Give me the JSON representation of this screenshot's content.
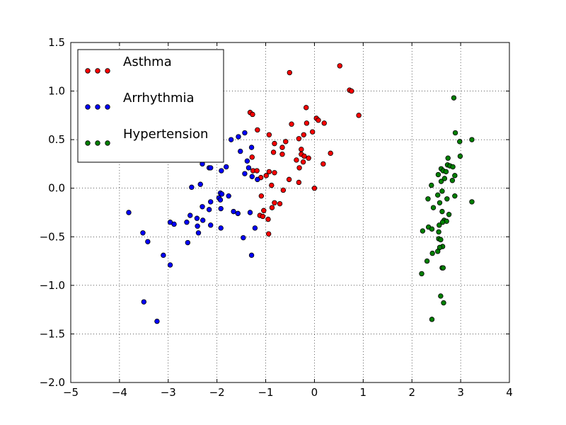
{
  "chart_data": {
    "type": "scatter",
    "title": "",
    "xlabel": "",
    "ylabel": "",
    "xlim": [
      -5,
      4
    ],
    "ylim": [
      -2.0,
      1.5
    ],
    "xticks": [
      -5,
      -4,
      -3,
      -2,
      -1,
      0,
      1,
      2,
      3,
      4
    ],
    "xtick_labels": [
      "−5",
      "−4",
      "−3",
      "−2",
      "−1",
      "0",
      "1",
      "2",
      "3",
      "4"
    ],
    "yticks": [
      -2.0,
      -1.5,
      -1.0,
      -0.5,
      0.0,
      0.5,
      1.0,
      1.5
    ],
    "ytick_labels": [
      "−2.0",
      "−1.5",
      "−1.0",
      "−0.5",
      "0.0",
      "0.5",
      "1.0",
      "1.5"
    ],
    "grid": true,
    "legend_position": "top-left",
    "series": [
      {
        "name": "Asthma",
        "color": "#ff0000",
        "points": [
          [
            0.52,
            1.26
          ],
          [
            -0.51,
            1.19
          ],
          [
            0.72,
            1.01
          ],
          [
            0.76,
            1.0
          ],
          [
            -1.32,
            0.78
          ],
          [
            -1.27,
            0.76
          ],
          [
            0.91,
            0.75
          ],
          [
            -0.17,
            0.83
          ],
          [
            0.04,
            0.72
          ],
          [
            0.08,
            0.7
          ],
          [
            0.2,
            0.67
          ],
          [
            -0.47,
            0.66
          ],
          [
            -0.16,
            0.67
          ],
          [
            -1.17,
            0.6
          ],
          [
            -0.04,
            0.58
          ],
          [
            -0.93,
            0.55
          ],
          [
            -0.22,
            0.55
          ],
          [
            -0.32,
            0.51
          ],
          [
            -0.59,
            0.48
          ],
          [
            -0.82,
            0.46
          ],
          [
            -0.66,
            0.42
          ],
          [
            -0.27,
            0.4
          ],
          [
            -0.84,
            0.37
          ],
          [
            -0.66,
            0.35
          ],
          [
            0.33,
            0.36
          ],
          [
            -0.27,
            0.35
          ],
          [
            -0.21,
            0.33
          ],
          [
            -0.12,
            0.31
          ],
          [
            -1.28,
            0.32
          ],
          [
            -0.37,
            0.29
          ],
          [
            -0.23,
            0.27
          ],
          [
            0.18,
            0.25
          ],
          [
            -0.31,
            0.21
          ],
          [
            -1.26,
            0.18
          ],
          [
            -1.18,
            0.18
          ],
          [
            -0.93,
            0.17
          ],
          [
            -0.82,
            0.16
          ],
          [
            -0.99,
            0.13
          ],
          [
            -1.1,
            0.11
          ],
          [
            -0.52,
            0.09
          ],
          [
            -0.88,
            0.03
          ],
          [
            -0.32,
            0.06
          ],
          [
            -0.64,
            -0.02
          ],
          [
            -1.09,
            -0.08
          ],
          [
            -0.82,
            -0.15
          ],
          [
            -0.71,
            -0.16
          ],
          [
            -0.87,
            -0.2
          ],
          [
            -1.04,
            -0.23
          ],
          [
            -1.12,
            -0.28
          ],
          [
            -1.06,
            -0.29
          ],
          [
            -0.95,
            -0.32
          ],
          [
            -0.94,
            -0.47
          ],
          [
            0.0,
            0.0
          ]
        ]
      },
      {
        "name": "Arrhythmia",
        "color": "#0000ff",
        "points": [
          [
            -1.43,
            0.57
          ],
          [
            -1.56,
            0.53
          ],
          [
            -1.71,
            0.5
          ],
          [
            -1.29,
            0.42
          ],
          [
            -1.52,
            0.38
          ],
          [
            -1.38,
            0.28
          ],
          [
            -2.3,
            0.25
          ],
          [
            -1.81,
            0.22
          ],
          [
            -2.16,
            0.21
          ],
          [
            -1.35,
            0.21
          ],
          [
            -1.91,
            0.18
          ],
          [
            -2.13,
            0.21
          ],
          [
            -1.43,
            0.15
          ],
          [
            -1.28,
            0.12
          ],
          [
            -1.17,
            0.09
          ],
          [
            -2.34,
            0.04
          ],
          [
            -2.52,
            0.01
          ],
          [
            -1.93,
            -0.05
          ],
          [
            -1.9,
            -0.06
          ],
          [
            -1.76,
            -0.08
          ],
          [
            -2.13,
            -0.14
          ],
          [
            -1.96,
            -0.1
          ],
          [
            -1.93,
            -0.12
          ],
          [
            -2.3,
            -0.19
          ],
          [
            -2.16,
            -0.22
          ],
          [
            -1.92,
            -0.21
          ],
          [
            -1.66,
            -0.24
          ],
          [
            -1.57,
            -0.26
          ],
          [
            -1.32,
            -0.25
          ],
          [
            -2.55,
            -0.28
          ],
          [
            -2.41,
            -0.31
          ],
          [
            -2.29,
            -0.33
          ],
          [
            -2.62,
            -0.35
          ],
          [
            -2.96,
            -0.35
          ],
          [
            -2.88,
            -0.37
          ],
          [
            -2.13,
            -0.38
          ],
          [
            -2.4,
            -0.39
          ],
          [
            -1.92,
            -0.41
          ],
          [
            -1.22,
            -0.41
          ],
          [
            -2.38,
            -0.46
          ],
          [
            -1.46,
            -0.51
          ],
          [
            -3.81,
            -0.25
          ],
          [
            -3.52,
            -0.46
          ],
          [
            -3.42,
            -0.55
          ],
          [
            -2.6,
            -0.56
          ],
          [
            -3.1,
            -0.69
          ],
          [
            -1.29,
            -0.69
          ],
          [
            -2.96,
            -0.79
          ],
          [
            -3.5,
            -1.17
          ],
          [
            -3.23,
            -1.37
          ]
        ]
      },
      {
        "name": "Hypertension",
        "color": "#007f00",
        "points": [
          [
            2.86,
            0.93
          ],
          [
            2.89,
            0.57
          ],
          [
            2.98,
            0.48
          ],
          [
            3.23,
            0.5
          ],
          [
            2.99,
            0.33
          ],
          [
            2.74,
            0.31
          ],
          [
            2.73,
            0.24
          ],
          [
            2.78,
            0.23
          ],
          [
            2.84,
            0.22
          ],
          [
            2.6,
            0.2
          ],
          [
            2.64,
            0.18
          ],
          [
            2.7,
            0.17
          ],
          [
            2.54,
            0.14
          ],
          [
            2.88,
            0.13
          ],
          [
            2.67,
            0.1
          ],
          [
            2.83,
            0.08
          ],
          [
            2.6,
            0.07
          ],
          [
            2.4,
            0.03
          ],
          [
            2.62,
            -0.03
          ],
          [
            2.53,
            -0.07
          ],
          [
            2.88,
            -0.08
          ],
          [
            2.72,
            -0.11
          ],
          [
            2.33,
            -0.11
          ],
          [
            2.57,
            -0.15
          ],
          [
            3.23,
            -0.14
          ],
          [
            2.44,
            -0.2
          ],
          [
            2.62,
            -0.24
          ],
          [
            2.76,
            -0.27
          ],
          [
            2.66,
            -0.33
          ],
          [
            2.71,
            -0.34
          ],
          [
            2.63,
            -0.35
          ],
          [
            2.56,
            -0.38
          ],
          [
            2.34,
            -0.4
          ],
          [
            2.41,
            -0.42
          ],
          [
            2.22,
            -0.44
          ],
          [
            2.55,
            -0.45
          ],
          [
            2.55,
            -0.52
          ],
          [
            2.59,
            -0.53
          ],
          [
            2.63,
            -0.6
          ],
          [
            2.57,
            -0.61
          ],
          [
            2.53,
            -0.65
          ],
          [
            2.42,
            -0.67
          ],
          [
            2.31,
            -0.75
          ],
          [
            2.62,
            -0.82
          ],
          [
            2.64,
            -0.82
          ],
          [
            2.2,
            -0.88
          ],
          [
            2.59,
            -1.11
          ],
          [
            2.65,
            -1.18
          ],
          [
            2.41,
            -1.35
          ]
        ]
      }
    ]
  }
}
